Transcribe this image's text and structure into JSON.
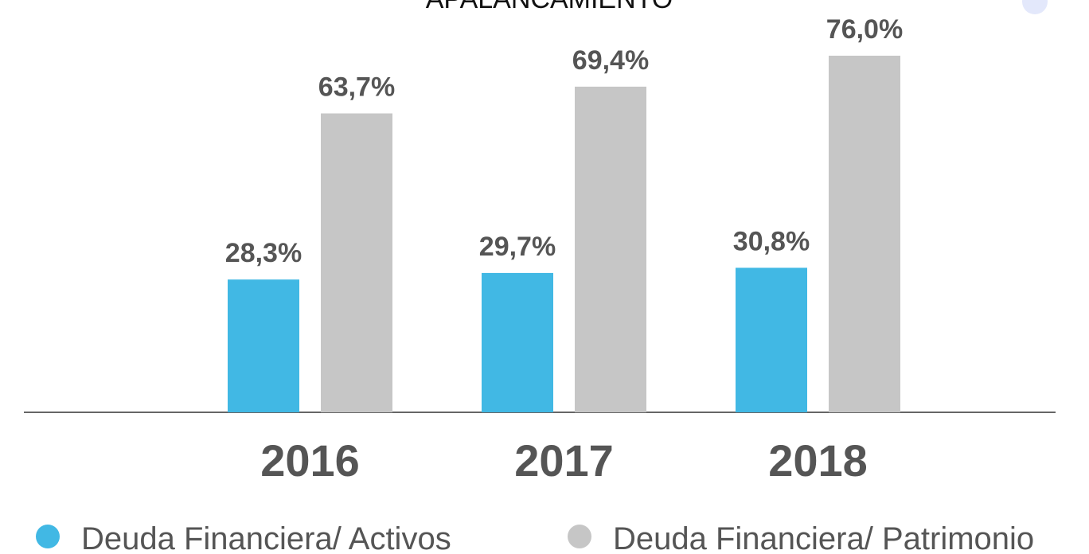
{
  "chart_data": {
    "type": "bar",
    "title": "APALANCAMIENTO",
    "categories": [
      "2016",
      "2017",
      "2018"
    ],
    "series": [
      {
        "name": "Deuda Financiera/ Activos",
        "color": "#41b8e4",
        "values": [
          28.3,
          29.7,
          30.8
        ],
        "value_labels": [
          "28,3%",
          "29,7%",
          "30,8%"
        ]
      },
      {
        "name": "Deuda Financiera/ Patrimonio",
        "color": "#c6c6c6",
        "values": [
          63.7,
          69.4,
          76.0
        ],
        "value_labels": [
          "63,7%",
          "69,4%",
          "76,0%"
        ]
      }
    ],
    "ylim": [
      0,
      80
    ],
    "grid": false,
    "legend": "bottom"
  }
}
